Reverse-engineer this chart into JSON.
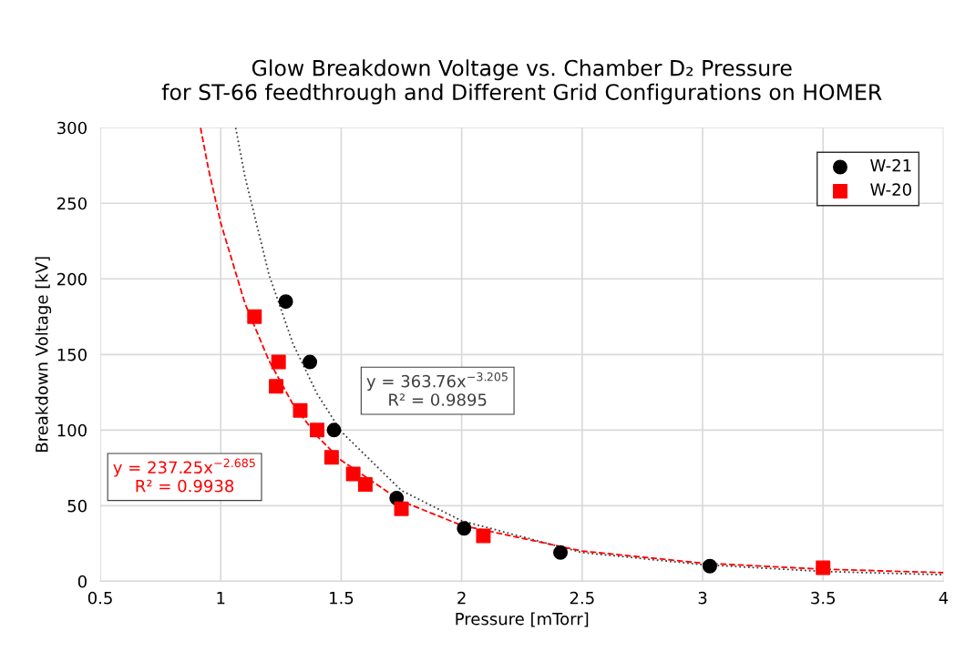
{
  "chart_data": {
    "type": "scatter",
    "title": "Glow Breakdown Voltage vs. Chamber D₂ Pressure\nfor ST-66 feedthrough and Different Grid Configurations on HOMER",
    "xlabel": "Pressure [mTorr]",
    "ylabel": "Breakdown Voltage [kV]",
    "series": [
      {
        "name": "W-21",
        "color": "#000000",
        "marker": "circle",
        "x": [
          1.27,
          1.37,
          1.47,
          1.73,
          2.01,
          2.41,
          3.03
        ],
        "values": [
          185,
          145,
          100,
          55,
          35,
          19,
          10
        ]
      },
      {
        "name": "W-20",
        "color": "#ff0000",
        "marker": "square",
        "x": [
          1.14,
          1.23,
          1.24,
          1.33,
          1.4,
          1.46,
          1.55,
          1.6,
          1.75,
          2.09,
          3.5
        ],
        "values": [
          175,
          129,
          145,
          113,
          100,
          82,
          71,
          64,
          48,
          30,
          9
        ]
      },
      {
        "type": "line",
        "color": "#404040",
        "line_style": "dotted",
        "x": [
          1.062,
          1.1,
          1.2,
          1.3,
          1.4,
          1.5,
          1.75,
          2,
          2.5,
          3,
          3.5,
          4
        ],
        "values": [
          300,
          268,
          203,
          157,
          124,
          99,
          60,
          40,
          19,
          11,
          6.5,
          4.3
        ]
      },
      {
        "type": "line",
        "color": "#ff0000",
        "line_style": "dashed",
        "x": [
          0.916,
          0.95,
          1.0,
          1.1,
          1.2,
          1.3,
          1.4,
          1.5,
          1.75,
          2,
          2.5,
          3,
          3.5,
          4
        ],
        "values": [
          300,
          272,
          237,
          184,
          146,
          117,
          96,
          80,
          53,
          37,
          20,
          12,
          8,
          5.7
        ]
      }
    ],
    "annotations": [
      "y = 363.76x$^{−3.205}$\nR² = 0.9895",
      "y = 237.25x$^{−2.685}$\nR² = 0.9938"
    ],
    "xlim": [
      0.5,
      4
    ],
    "xticks": [
      0.5,
      1,
      1.5,
      2,
      2.5,
      3,
      3.5,
      4
    ],
    "ylim": [
      0,
      300
    ],
    "yticks": [
      0,
      50,
      100,
      150,
      200,
      250,
      300
    ],
    "grid": true,
    "legend": "top right"
  }
}
